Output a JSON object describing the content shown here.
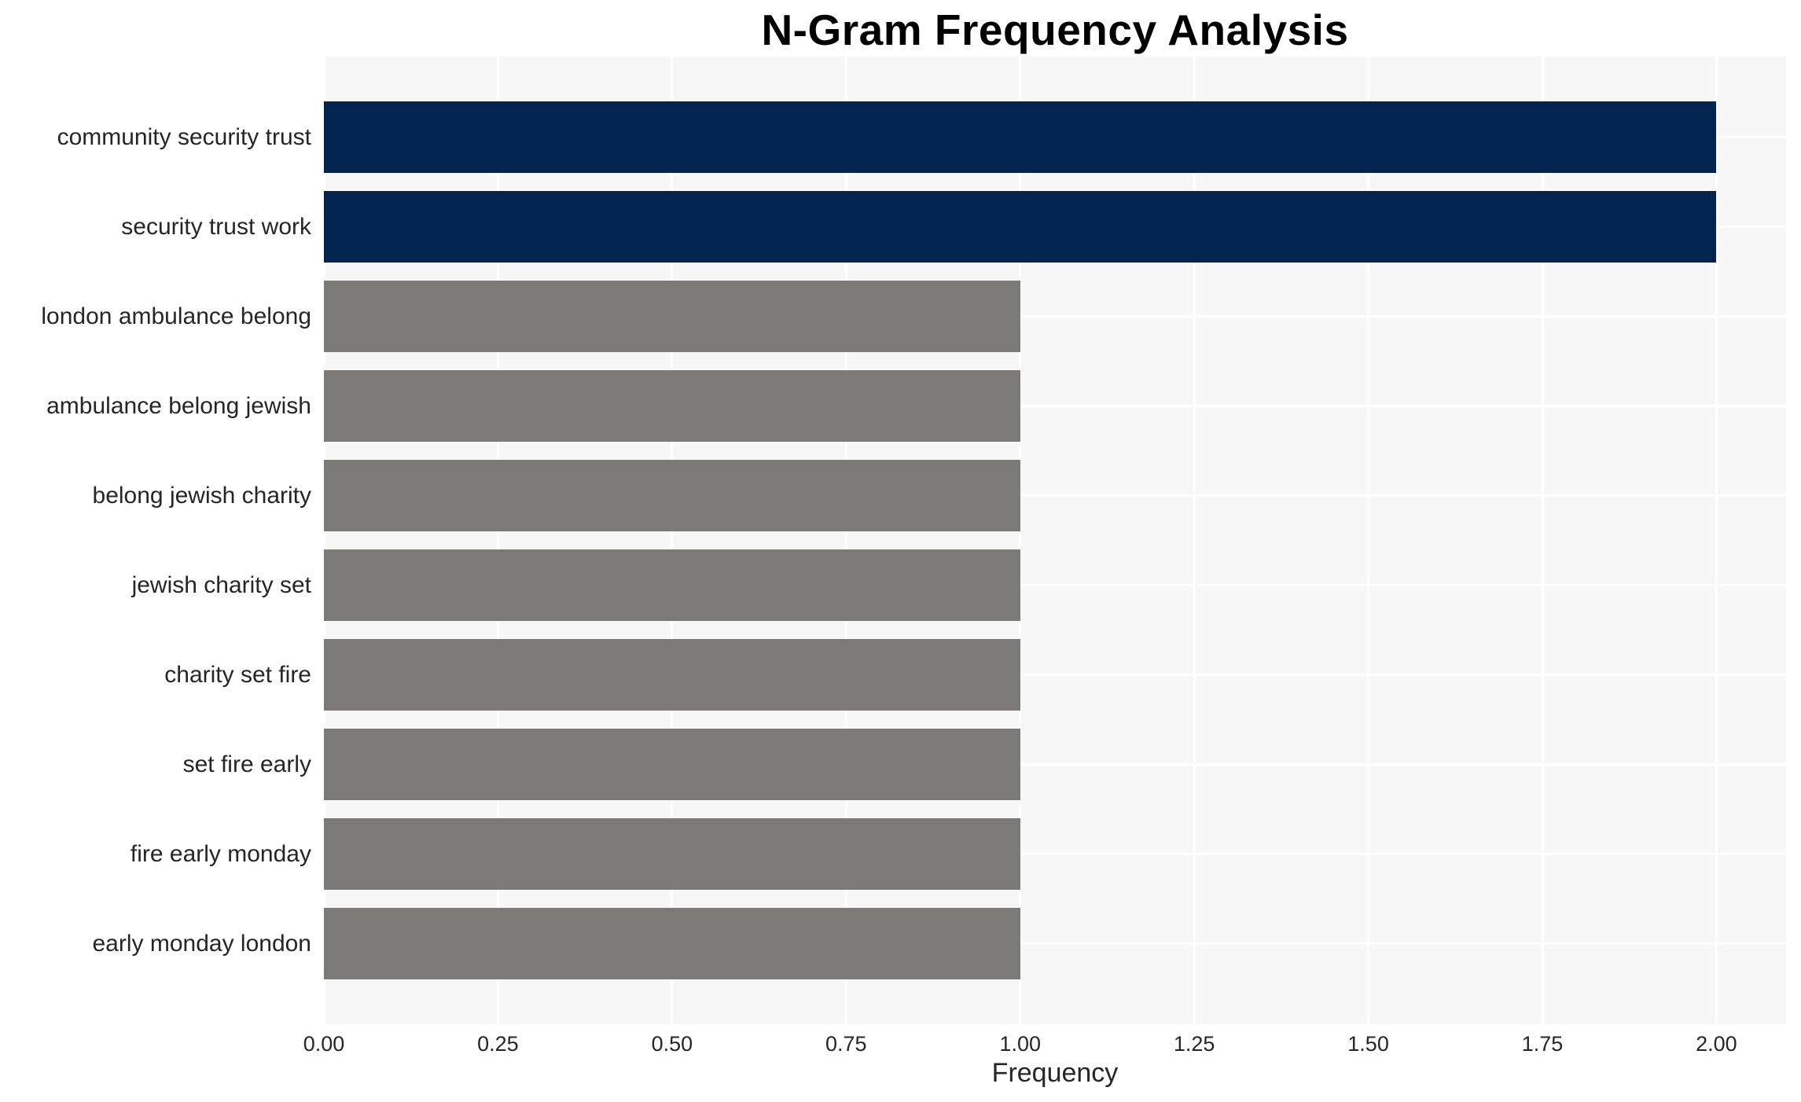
{
  "title": "N-Gram Frequency Analysis",
  "colors": {
    "highlight_bar": "#02244F",
    "default_bar": "#7B7A77",
    "plot_background": "#F7F7F7",
    "gridline": "#FFFFFF",
    "title_text": "#000000",
    "label_text": "#262626"
  },
  "chart_data": {
    "type": "bar",
    "orientation": "horizontal",
    "title": "N-Gram Frequency Analysis",
    "xlabel": "Frequency",
    "ylabel": "",
    "categories": [
      "community security trust",
      "security trust work",
      "london ambulance belong",
      "ambulance belong jewish",
      "belong jewish charity",
      "jewish charity set",
      "charity set fire",
      "set fire early",
      "fire early monday",
      "early monday london"
    ],
    "values": [
      2,
      2,
      1,
      1,
      1,
      1,
      1,
      1,
      1,
      1
    ],
    "bar_colors": [
      "#02244F",
      "#02244F",
      "#7B7A77",
      "#7B7A77",
      "#7B7A77",
      "#7B7A77",
      "#7B7A77",
      "#7B7A77",
      "#7B7A77",
      "#7B7A77"
    ],
    "x_ticks": [
      0,
      0.25,
      0.5,
      0.75,
      1,
      1.25,
      1.5,
      1.75,
      2
    ],
    "x_tick_labels": [
      "0.00",
      "0.25",
      "0.50",
      "0.75",
      "1.00",
      "1.25",
      "1.50",
      "1.75",
      "2.00"
    ],
    "xlim": [
      0,
      2.1
    ],
    "grid": true,
    "legend": false
  }
}
